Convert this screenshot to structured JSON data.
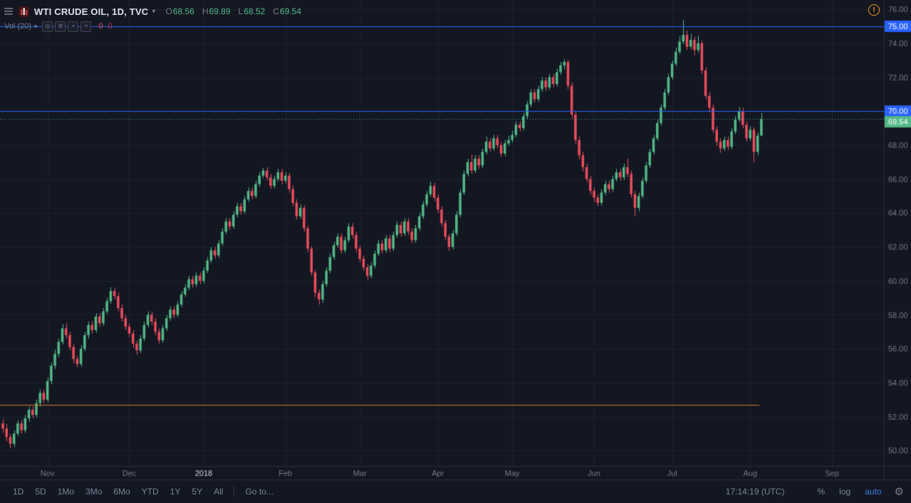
{
  "legend": {
    "title": "WTI CRUDE OIL, 1D, TVC",
    "caret": "▾",
    "ohlc": {
      "o_key": "O",
      "o": "68.56",
      "h_key": "H",
      "h": "69.89",
      "l_key": "L",
      "l": "68.52",
      "c_key": "C",
      "c": "69.54"
    },
    "indicator": {
      "name": "Vol (20)",
      "actions": [
        {
          "name": "eye-icon",
          "glyph": "◎"
        },
        {
          "name": "gear-icon",
          "glyph": "⚙"
        },
        {
          "name": "plus-icon",
          "glyph": "+"
        },
        {
          "name": "close-icon",
          "glyph": "×"
        }
      ],
      "values": [
        "0",
        "0"
      ],
      "value_colors": [
        "#eb4d5c",
        "#a93a3a"
      ]
    }
  },
  "warning_glyph": "!",
  "toolbar": {
    "ranges": [
      "1D",
      "5D",
      "1Mo",
      "3Mo",
      "6Mo",
      "YTD",
      "1Y",
      "5Y",
      "All"
    ],
    "goto_label": "Go to...",
    "time": "17:14:19 (UTC)",
    "percent_label": "%",
    "log_label": "log",
    "auto_label": "auto",
    "gear_glyph": "⚙"
  },
  "colors": {
    "bg": "#131722",
    "grid": "#1e2230",
    "up": "#53b987",
    "down": "#eb4d5c",
    "axis_text": "#787b86",
    "axis_text_bright": "#d1d4dc",
    "axis_border": "#2a2e39",
    "accent_blue": "#2962ff",
    "level_orange": "#d97b29",
    "last_price_green": "#53b987"
  },
  "chart_data": {
    "type": "candlestick",
    "title": "WTI CRUDE OIL, 1D, TVC",
    "symbol": "WTI CRUDE OIL",
    "interval": "1D",
    "exchange": "TVC",
    "legend_ohlc": {
      "open": 68.56,
      "high": 69.89,
      "low": 68.52,
      "close": 69.54
    },
    "ylim": [
      49.09,
      76.55
    ],
    "price_axis": {
      "min": 50,
      "max": 76,
      "step": 2
    },
    "months": [
      {
        "label": "Nov",
        "index": 12
      },
      {
        "label": "Dec",
        "index": 34
      },
      {
        "label": "2018",
        "index": 54,
        "emphasis": true
      },
      {
        "label": "Feb",
        "index": 76
      },
      {
        "label": "Mar",
        "index": 96
      },
      {
        "label": "Apr",
        "index": 117
      },
      {
        "label": "May",
        "index": 137
      },
      {
        "label": "Jun",
        "index": 159
      },
      {
        "label": "Jul",
        "index": 180
      },
      {
        "label": "Aug",
        "index": 201
      },
      {
        "label": "Sep",
        "index": 223
      }
    ],
    "levels": [
      {
        "price": 75.0,
        "color": "#2962ff",
        "style": "solid",
        "label": "75.00",
        "to_index": null
      },
      {
        "price": 70.0,
        "color": "#2962ff",
        "style": "solid",
        "label": "70.00",
        "to_index": null
      },
      {
        "price": 52.7,
        "color": "#d97b29",
        "style": "solid",
        "label": null,
        "to_index": 203.5
      }
    ],
    "last_price": {
      "value": 69.54,
      "label": "69.54",
      "color": "#53b987",
      "style": "dotted"
    },
    "candles": [
      [
        51.6,
        51.85,
        51.05,
        51.3
      ],
      [
        51.3,
        51.55,
        50.55,
        50.8
      ],
      [
        50.8,
        51,
        50.15,
        50.4
      ],
      [
        50.4,
        51.2,
        50.2,
        51
      ],
      [
        51,
        51.8,
        50.85,
        51.6
      ],
      [
        51.6,
        51.8,
        51,
        51.2
      ],
      [
        51.2,
        52.1,
        51.05,
        51.9
      ],
      [
        51.9,
        52.6,
        51.7,
        52.4
      ],
      [
        52.4,
        52.6,
        51.9,
        52.1
      ],
      [
        52.1,
        53,
        51.95,
        52.8
      ],
      [
        52.8,
        53.6,
        52.6,
        53.4
      ],
      [
        53.4,
        53.6,
        52.8,
        53
      ],
      [
        53,
        54.3,
        52.85,
        54.1
      ],
      [
        54.1,
        55.2,
        53.9,
        55
      ],
      [
        55,
        55.95,
        54.8,
        55.7
      ],
      [
        55.7,
        56.6,
        55.5,
        56.4
      ],
      [
        56.4,
        57.45,
        56.25,
        57.2
      ],
      [
        57.2,
        57.5,
        56.6,
        56.8
      ],
      [
        56.8,
        57,
        55.9,
        56.1
      ],
      [
        56.1,
        56.3,
        55.15,
        55.4
      ],
      [
        55.4,
        55.6,
        54.9,
        55.1
      ],
      [
        55.1,
        56.2,
        54.95,
        56
      ],
      [
        56,
        57,
        55.85,
        56.8
      ],
      [
        56.8,
        57.6,
        56.6,
        57.4
      ],
      [
        57.4,
        57.65,
        56.9,
        57.1
      ],
      [
        57.1,
        58.1,
        56.95,
        57.9
      ],
      [
        57.9,
        58.1,
        57.3,
        57.5
      ],
      [
        57.5,
        58.4,
        57.35,
        58.2
      ],
      [
        58.2,
        59,
        58.05,
        58.8
      ],
      [
        58.8,
        59.62,
        58.65,
        59.4
      ],
      [
        59.4,
        59.6,
        58.9,
        59.1
      ],
      [
        59.1,
        59.3,
        58.2,
        58.4
      ],
      [
        58.4,
        58.6,
        57.6,
        57.8
      ],
      [
        57.8,
        58,
        57.1,
        57.3
      ],
      [
        57.3,
        57.5,
        56.7,
        56.9
      ],
      [
        56.9,
        57.1,
        56.05,
        56.3
      ],
      [
        56.3,
        56.5,
        55.65,
        55.9
      ],
      [
        55.9,
        56.8,
        55.75,
        56.6
      ],
      [
        56.6,
        57.6,
        56.45,
        57.4
      ],
      [
        57.4,
        58.2,
        57.25,
        58
      ],
      [
        58,
        58.2,
        57.4,
        57.6
      ],
      [
        57.6,
        57.8,
        56.8,
        57
      ],
      [
        57,
        57.2,
        56.3,
        56.5
      ],
      [
        56.5,
        57.4,
        56.35,
        57.2
      ],
      [
        57.2,
        58,
        57.05,
        57.8
      ],
      [
        57.8,
        58.5,
        57.65,
        58.3
      ],
      [
        58.3,
        58.5,
        57.8,
        58
      ],
      [
        58,
        58.8,
        57.85,
        58.6
      ],
      [
        58.6,
        59.4,
        58.45,
        59.2
      ],
      [
        59.2,
        59.8,
        59.05,
        59.6
      ],
      [
        59.6,
        60.3,
        59.45,
        60.1
      ],
      [
        60.1,
        60.3,
        59.6,
        59.8
      ],
      [
        59.8,
        60.5,
        59.65,
        60.3
      ],
      [
        60.3,
        60.5,
        59.8,
        60
      ],
      [
        60,
        60.8,
        59.85,
        60.6
      ],
      [
        60.6,
        61.4,
        60.45,
        61.2
      ],
      [
        61.2,
        62,
        61.05,
        61.8
      ],
      [
        61.8,
        62,
        61.3,
        61.5
      ],
      [
        61.5,
        62.4,
        61.35,
        62.2
      ],
      [
        62.2,
        63.1,
        62.05,
        62.9
      ],
      [
        62.9,
        63.7,
        62.75,
        63.5
      ],
      [
        63.5,
        63.7,
        63,
        63.2
      ],
      [
        63.2,
        64.1,
        63.05,
        63.9
      ],
      [
        63.9,
        64.6,
        63.75,
        64.4
      ],
      [
        64.4,
        64.6,
        63.9,
        64.1
      ],
      [
        64.1,
        65,
        63.95,
        64.8
      ],
      [
        64.8,
        65.5,
        64.65,
        65.3
      ],
      [
        65.3,
        65.5,
        64.8,
        65
      ],
      [
        65,
        65.9,
        64.85,
        65.7
      ],
      [
        65.7,
        66.4,
        65.55,
        66.2
      ],
      [
        66.2,
        66.66,
        66.05,
        66.5
      ],
      [
        66.5,
        66.7,
        65.9,
        66.1
      ],
      [
        66.1,
        66.3,
        65.4,
        65.6
      ],
      [
        65.6,
        66.2,
        65.45,
        66
      ],
      [
        66,
        66.6,
        65.85,
        66.4
      ],
      [
        66.4,
        66.6,
        65.7,
        65.9
      ],
      [
        65.9,
        66.4,
        65.75,
        66.2
      ],
      [
        66.2,
        66.35,
        65.2,
        65.4
      ],
      [
        65.4,
        65.6,
        64.4,
        64.6
      ],
      [
        64.6,
        64.8,
        63.6,
        63.8
      ],
      [
        63.8,
        64.5,
        63.65,
        64.3
      ],
      [
        64.3,
        64.45,
        62.9,
        63.1
      ],
      [
        63.1,
        63.25,
        61.7,
        61.9
      ],
      [
        61.9,
        62.05,
        60.3,
        60.5
      ],
      [
        60.5,
        60.65,
        59.05,
        59.3
      ],
      [
        59.3,
        59.5,
        58.6,
        58.9
      ],
      [
        58.9,
        60,
        58.7,
        59.8
      ],
      [
        59.8,
        60.8,
        59.65,
        60.6
      ],
      [
        60.6,
        61.6,
        60.45,
        61.4
      ],
      [
        61.4,
        62.3,
        61.25,
        62.1
      ],
      [
        62.1,
        62.8,
        61.95,
        62.6
      ],
      [
        62.6,
        62.8,
        61.6,
        61.8
      ],
      [
        61.8,
        62.6,
        61.65,
        62.4
      ],
      [
        62.4,
        63.4,
        62.25,
        63.2
      ],
      [
        63.2,
        63.4,
        62.5,
        62.7
      ],
      [
        62.7,
        62.9,
        61.7,
        61.9
      ],
      [
        61.9,
        62.1,
        61.1,
        61.3
      ],
      [
        61.3,
        61.5,
        60.6,
        60.8
      ],
      [
        60.8,
        61,
        60.05,
        60.3
      ],
      [
        60.3,
        61.1,
        60.15,
        60.9
      ],
      [
        60.9,
        61.8,
        60.75,
        61.6
      ],
      [
        61.6,
        62.4,
        61.45,
        62.2
      ],
      [
        62.2,
        62.4,
        61.6,
        61.8
      ],
      [
        61.8,
        62.7,
        61.65,
        62.5
      ],
      [
        62.5,
        62.7,
        61.7,
        61.9
      ],
      [
        61.9,
        62.9,
        61.75,
        62.7
      ],
      [
        62.7,
        63.5,
        62.55,
        63.3
      ],
      [
        63.3,
        63.5,
        62.6,
        62.8
      ],
      [
        62.8,
        63.7,
        62.65,
        63.5
      ],
      [
        63.5,
        63.7,
        62.7,
        62.9
      ],
      [
        62.9,
        63.1,
        62.2,
        62.4
      ],
      [
        62.4,
        63.3,
        62.25,
        63.1
      ],
      [
        63.1,
        64,
        62.95,
        63.8
      ],
      [
        63.8,
        64.7,
        63.65,
        64.5
      ],
      [
        64.5,
        65.3,
        64.35,
        65.1
      ],
      [
        65.1,
        65.85,
        64.95,
        65.6
      ],
      [
        65.6,
        65.8,
        64.7,
        64.9
      ],
      [
        64.9,
        65.1,
        64,
        64.2
      ],
      [
        64.2,
        64.4,
        63.2,
        63.4
      ],
      [
        63.4,
        63.6,
        62.4,
        62.6
      ],
      [
        62.6,
        62.75,
        61.77,
        62
      ],
      [
        62,
        63,
        61.85,
        62.8
      ],
      [
        62.8,
        64.1,
        62.65,
        63.9
      ],
      [
        63.9,
        65.4,
        63.75,
        65.2
      ],
      [
        65.2,
        66.5,
        65.05,
        66.3
      ],
      [
        66.3,
        67.2,
        66.15,
        67
      ],
      [
        67,
        67.45,
        66.3,
        66.5
      ],
      [
        66.5,
        67.4,
        66.35,
        67.2
      ],
      [
        67.2,
        67.4,
        66.6,
        66.8
      ],
      [
        66.8,
        67.8,
        66.65,
        67.6
      ],
      [
        67.6,
        68.5,
        67.45,
        68.2
      ],
      [
        68.2,
        68.4,
        67.6,
        67.8
      ],
      [
        67.8,
        68.6,
        67.65,
        68.4
      ],
      [
        68.4,
        68.6,
        67.8,
        68
      ],
      [
        68,
        68.2,
        67.3,
        67.5
      ],
      [
        67.5,
        68.3,
        67.35,
        68.1
      ],
      [
        68.1,
        68.55,
        67.95,
        68.3
      ],
      [
        68.3,
        68.85,
        68.15,
        68.6
      ],
      [
        68.6,
        69.4,
        68.45,
        69.2
      ],
      [
        69.2,
        69.4,
        68.8,
        69
      ],
      [
        69,
        69.9,
        68.85,
        69.7
      ],
      [
        69.7,
        70.6,
        69.55,
        70.4
      ],
      [
        70.4,
        71.3,
        70.25,
        71.1
      ],
      [
        71.1,
        71.3,
        70.5,
        70.7
      ],
      [
        70.7,
        71.5,
        70.55,
        71.3
      ],
      [
        71.3,
        72,
        71.15,
        71.8
      ],
      [
        71.8,
        72,
        71.2,
        71.4
      ],
      [
        71.4,
        72.2,
        71.25,
        72
      ],
      [
        72,
        72.2,
        71.4,
        71.6
      ],
      [
        71.6,
        72.5,
        71.45,
        72.3
      ],
      [
        72.3,
        72.9,
        72.15,
        72.7
      ],
      [
        72.7,
        73.05,
        72.45,
        72.9
      ],
      [
        72.9,
        73,
        71.3,
        71.5
      ],
      [
        71.5,
        71.7,
        69.6,
        69.8
      ],
      [
        69.8,
        70,
        68.05,
        68.3
      ],
      [
        68.3,
        68.5,
        67.15,
        67.4
      ],
      [
        67.4,
        67.6,
        66.45,
        66.7
      ],
      [
        66.7,
        66.9,
        65.8,
        66
      ],
      [
        66,
        66.2,
        65.05,
        65.3
      ],
      [
        65.3,
        65.5,
        64.65,
        64.9
      ],
      [
        64.9,
        65.1,
        64.4,
        64.6
      ],
      [
        64.6,
        65.4,
        64.45,
        65.2
      ],
      [
        65.2,
        65.9,
        65.05,
        65.7
      ],
      [
        65.7,
        65.9,
        65.2,
        65.4
      ],
      [
        65.4,
        66.2,
        65.25,
        66
      ],
      [
        66,
        66.6,
        65.85,
        66.4
      ],
      [
        66.4,
        66.6,
        65.9,
        66.1
      ],
      [
        66.1,
        66.9,
        65.95,
        66.7
      ],
      [
        66.7,
        67.2,
        66.1,
        66.3
      ],
      [
        66.3,
        66.5,
        64.9,
        65.1
      ],
      [
        65.1,
        65.3,
        63.8,
        64.3
      ],
      [
        64.3,
        65.2,
        64.1,
        65
      ],
      [
        65,
        66.1,
        64.85,
        65.9
      ],
      [
        65.9,
        67,
        65.75,
        66.8
      ],
      [
        66.8,
        67.8,
        66.65,
        67.6
      ],
      [
        67.6,
        68.6,
        67.45,
        68.4
      ],
      [
        68.4,
        69.5,
        68.25,
        69.3
      ],
      [
        69.3,
        70.4,
        69.15,
        70.2
      ],
      [
        70.2,
        71.3,
        70.05,
        71.1
      ],
      [
        71.1,
        72.2,
        70.95,
        72
      ],
      [
        72,
        73,
        71.85,
        72.8
      ],
      [
        72.8,
        73.75,
        72.65,
        73.5
      ],
      [
        73.5,
        74.4,
        73.35,
        74.1
      ],
      [
        74.1,
        75.38,
        73.95,
        74.5
      ],
      [
        74.5,
        74.75,
        73.6,
        73.8
      ],
      [
        73.8,
        74.55,
        73.65,
        74.2
      ],
      [
        74.2,
        74.4,
        73.3,
        73.6
      ],
      [
        73.6,
        74.45,
        73.45,
        74
      ],
      [
        74,
        74.15,
        72.2,
        72.4
      ],
      [
        72.4,
        72.6,
        70.7,
        70.9
      ],
      [
        70.9,
        71.1,
        69.95,
        70.2
      ],
      [
        70.2,
        70.4,
        68.7,
        68.9
      ],
      [
        68.9,
        69.1,
        67.95,
        68.2
      ],
      [
        68.2,
        68.4,
        67.55,
        67.8
      ],
      [
        67.8,
        68.5,
        67.65,
        68.3
      ],
      [
        68.3,
        68.5,
        67.7,
        67.9
      ],
      [
        67.9,
        69,
        67.75,
        68.8
      ],
      [
        68.8,
        69.7,
        68.65,
        69.5
      ],
      [
        69.5,
        70.25,
        69.35,
        70
      ],
      [
        70,
        70.2,
        69,
        69.2
      ],
      [
        69.2,
        69.4,
        68.2,
        68.4
      ],
      [
        68.4,
        69.1,
        68.25,
        68.9
      ],
      [
        68.9,
        69.05,
        66.98,
        67.6
      ],
      [
        67.6,
        68.76,
        67.4,
        68.56
      ],
      [
        68.56,
        69.89,
        68.52,
        69.54
      ]
    ]
  }
}
